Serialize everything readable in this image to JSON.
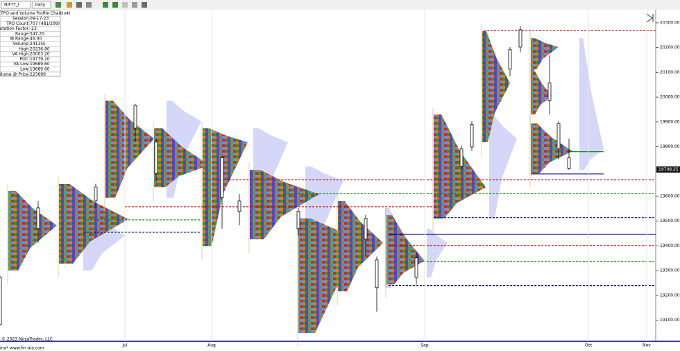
{
  "toolbar": {
    "instrument": "NIFTY_I",
    "interval": "Daily"
  },
  "info_table": {
    "title": "TPO and Volume Profile Chart(v4)",
    "rows": [
      [
        "Session",
        "09-17-23"
      ],
      [
        "TPO Count",
        "707 (481/209)"
      ],
      [
        "Rotation Factor",
        "-23"
      ],
      [
        "Range",
        "547.20"
      ],
      [
        "IB Range",
        "46.00"
      ],
      [
        "Volume",
        "24115k"
      ],
      [
        "High",
        "20236.80"
      ],
      [
        "VA High",
        "20003.20"
      ],
      [
        "POC",
        "19779.20"
      ],
      [
        "VA Low",
        "19689.60"
      ],
      [
        "Low",
        "19689.60"
      ],
      [
        "Volume @ Price",
        "223696"
      ]
    ]
  },
  "chart_data": {
    "type": "candlestick",
    "categories": [
      "Jul",
      "Aug",
      "Sep",
      "Oct",
      "Nov"
    ],
    "ylim": [
      19015,
      20350
    ],
    "yticks": [
      {
        "value": 20300,
        "label": "20300.00"
      },
      {
        "value": 20200,
        "label": "20200.00"
      },
      {
        "value": 20100,
        "label": "20100.00"
      },
      {
        "value": 20000,
        "label": "20000.00"
      },
      {
        "value": 19900,
        "label": "19900.00"
      },
      {
        "value": 19800,
        "label": "19800.00"
      },
      {
        "value": 19700,
        "label": "19700.00"
      },
      {
        "value": 19600,
        "label": "19600.00"
      },
      {
        "value": 19500,
        "label": "19500.00"
      },
      {
        "value": 19400,
        "label": "19400.00"
      },
      {
        "value": 19300,
        "label": "19300.00"
      },
      {
        "value": 19200,
        "label": "19200.00"
      },
      {
        "value": 19100,
        "label": "19100.00"
      }
    ],
    "current_price": {
      "value": 19708.25,
      "label": "19708.25"
    },
    "candles": [
      {
        "open": 19083,
        "high": 19280,
        "low": 19080,
        "close": 19273
      },
      {
        "open": 19469,
        "high": 19581,
        "low": 19413,
        "close": 19553
      },
      {
        "open": 19581,
        "high": 19651,
        "low": 19553,
        "close": 19637
      },
      {
        "open": 19875,
        "high": 19973,
        "low": 19819,
        "close": 19967
      },
      {
        "open": 19693,
        "high": 19833,
        "low": 19659,
        "close": 19819
      },
      {
        "open": 19595,
        "high": 19763,
        "low": 19469,
        "close": 19755
      },
      {
        "open": 19539,
        "high": 19609,
        "low": 19483,
        "close": 19581
      },
      {
        "open": 19469,
        "high": 19553,
        "low": 19441,
        "close": 19539
      },
      {
        "open": 19427,
        "high": 19525,
        "low": 19357,
        "close": 19511
      },
      {
        "open": 19231,
        "high": 19357,
        "low": 19134,
        "close": 19343
      },
      {
        "open": 19273,
        "high": 19371,
        "low": 19245,
        "close": 19352
      },
      {
        "open": 19721,
        "high": 19805,
        "low": 19707,
        "close": 19791
      },
      {
        "open": 19799,
        "high": 19903,
        "low": 19783,
        "close": 19889
      },
      {
        "open": 20113,
        "high": 20202,
        "low": 20085,
        "close": 20191
      },
      {
        "open": 20202,
        "high": 20286,
        "low": 20182,
        "close": 20272
      },
      {
        "open": 19987,
        "high": 20169,
        "low": 19931,
        "close": 20057
      },
      {
        "open": 19791,
        "high": 19903,
        "low": 19749,
        "close": 19894
      },
      {
        "open": 19713,
        "high": 19833,
        "low": 19707,
        "close": 19755
      }
    ],
    "levels": [
      {
        "price": 20270,
        "color": "#d00000",
        "style": "dashed"
      },
      {
        "price": 19780,
        "color": "#008000",
        "style": "solid"
      },
      {
        "price": 19690,
        "color": "#00008b",
        "style": "solid"
      },
      {
        "price": 19667,
        "color": "#d00000",
        "style": "dashed"
      },
      {
        "price": 19612,
        "color": "#008000",
        "style": "dashed"
      },
      {
        "price": 19558,
        "color": "#d00000",
        "style": "dashed"
      },
      {
        "price": 19514,
        "color": "#00008b",
        "style": "dashed"
      },
      {
        "price": 19505,
        "color": "#008000",
        "style": "dashed"
      },
      {
        "price": 19455,
        "color": "#00008b",
        "style": "dashed"
      },
      {
        "price": 19447,
        "color": "#00008b",
        "style": "solid"
      },
      {
        "price": 19402,
        "color": "#d00000",
        "style": "dashed"
      },
      {
        "price": 19338,
        "color": "#008000",
        "style": "dashed"
      },
      {
        "price": 19240,
        "color": "#00008b",
        "style": "dashed"
      }
    ]
  },
  "footer": {
    "copyright": "© 2023 NinjaTrader, LLC",
    "site": "ina* www.fin-ala.com"
  }
}
